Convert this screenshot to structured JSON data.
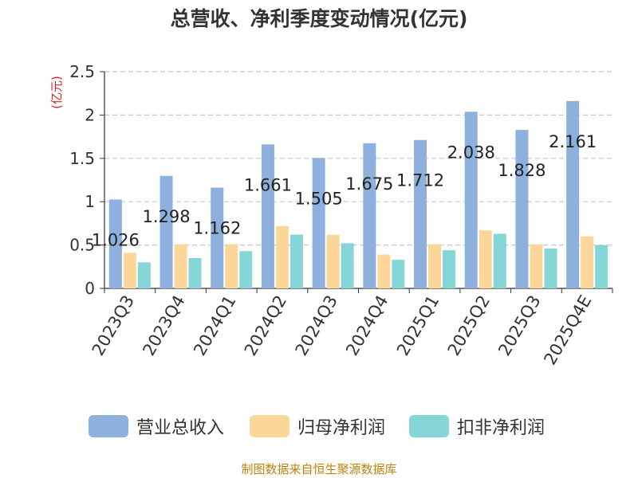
{
  "title": "总营收、净利季度变动情况(亿元)",
  "source": "制图数据来自恒生聚源数据库",
  "colors": {
    "revenue": "#8eb0dd",
    "net_profit": "#fdd79a",
    "deducted_profit": "#86d5d7",
    "ylabel": "#e02020"
  },
  "chart_data": {
    "type": "bar",
    "title": "总营收、净利季度变动情况(亿元)",
    "ylabel": "(亿元)",
    "xlabel": "",
    "ylim": [
      0,
      2.5
    ],
    "yticks": [
      "0",
      "0.5",
      "1",
      "1.5",
      "2",
      "2.5"
    ],
    "grid": true,
    "legend_position": "bottom",
    "categories": [
      "2023Q3",
      "2023Q4",
      "2024Q1",
      "2024Q2",
      "2024Q3",
      "2024Q4",
      "2025Q1",
      "2025Q2",
      "2025Q3",
      "2025Q4E"
    ],
    "series": [
      {
        "name": "营业总收入",
        "values": [
          1.026,
          1.298,
          1.162,
          1.661,
          1.505,
          1.675,
          1.712,
          2.038,
          1.828,
          2.161
        ],
        "labels": [
          "1.026",
          "1.298",
          "1.162",
          "1.661",
          "1.505",
          "1.675",
          "1.712",
          "2.038",
          "1.828",
          "2.161"
        ]
      },
      {
        "name": "归母净利润",
        "values": [
          0.41,
          0.51,
          0.51,
          0.72,
          0.62,
          0.39,
          0.51,
          0.67,
          0.51,
          0.6
        ]
      },
      {
        "name": "扣非净利润",
        "values": [
          0.3,
          0.35,
          0.43,
          0.62,
          0.52,
          0.33,
          0.44,
          0.63,
          0.46,
          0.5
        ]
      }
    ]
  }
}
